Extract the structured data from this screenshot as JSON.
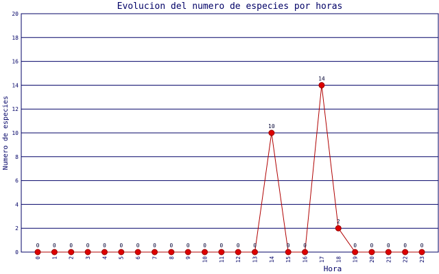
{
  "chart_data": {
    "type": "line",
    "title": "Evolucion del numero de especies por horas",
    "x_label": "Hora",
    "y_label": "Numero de especies",
    "categories": [
      "0",
      "1",
      "2",
      "3",
      "4",
      "5",
      "6",
      "7",
      "8",
      "9",
      "10",
      "11",
      "12",
      "13",
      "14",
      "15",
      "16",
      "17",
      "18",
      "19",
      "20",
      "21",
      "22",
      "23"
    ],
    "series": [
      {
        "name": "Numero de especies",
        "color": "#b00000",
        "values": [
          0,
          0,
          0,
          0,
          0,
          0,
          0,
          0,
          0,
          0,
          0,
          0,
          0,
          0,
          10,
          0,
          0,
          14,
          2,
          0,
          0,
          0,
          0,
          0
        ]
      }
    ],
    "ylim": [
      0,
      20
    ],
    "yticks": [
      0,
      2,
      4,
      6,
      8,
      10,
      12,
      14,
      16,
      18,
      20
    ],
    "grid": true
  }
}
